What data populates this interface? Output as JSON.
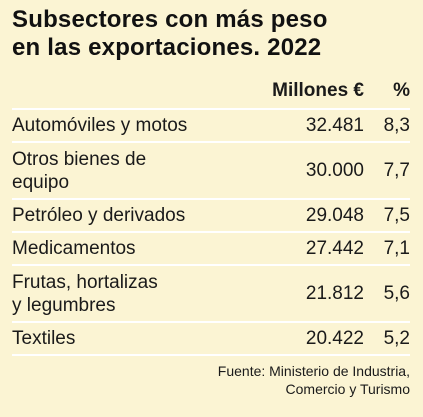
{
  "title_line1": "Subsectores con más peso",
  "title_line2": "en las exportaciones. 2022",
  "headers": {
    "col2": "Millones €",
    "col3": "%"
  },
  "rows": [
    {
      "label_line1": "Automóviles y motos",
      "label_line2": "",
      "millones": "32.481",
      "pct": "8,3"
    },
    {
      "label_line1": "Otros bienes de",
      "label_line2": "equipo",
      "millones": "30.000",
      "pct": "7,7"
    },
    {
      "label_line1": "Petróleo y derivados",
      "label_line2": "",
      "millones": "29.048",
      "pct": "7,5"
    },
    {
      "label_line1": "Medicamentos",
      "label_line2": "",
      "millones": "27.442",
      "pct": "7,1"
    },
    {
      "label_line1": "Frutas, hortalizas",
      "label_line2": "y legumbres",
      "millones": "21.812",
      "pct": "5,6"
    },
    {
      "label_line1": "Textiles",
      "label_line2": "",
      "millones": "20.422",
      "pct": "5,2"
    }
  ],
  "source_line1": "Fuente: Ministerio de Industria,",
  "source_line2": "Comercio y Turismo",
  "colors": {
    "background": "#fbf4d3",
    "divider": "#ffffff",
    "text": "#1a1a1a"
  }
}
